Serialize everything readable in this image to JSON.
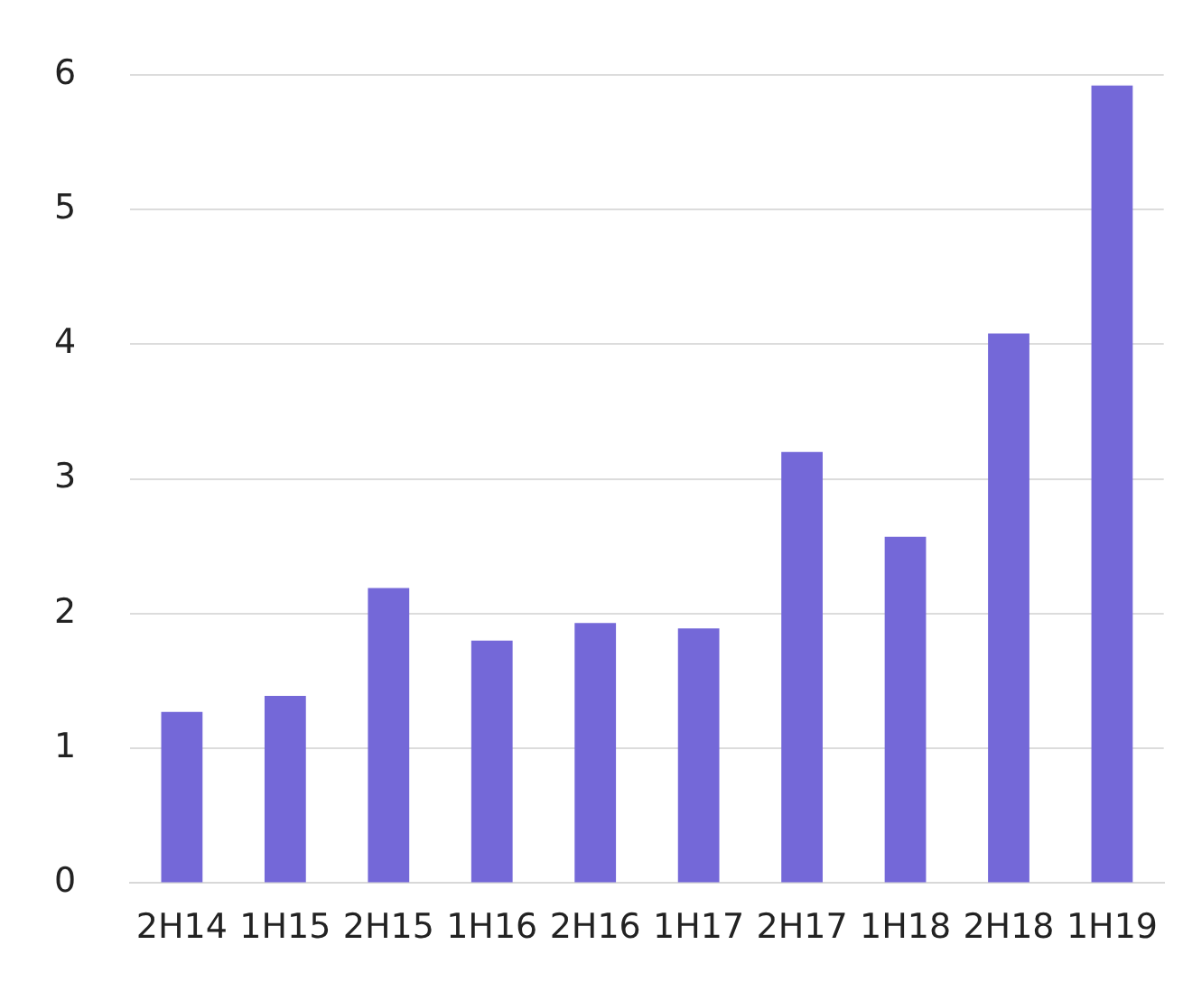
{
  "chart_data": {
    "type": "bar",
    "categories": [
      "2H14",
      "1H15",
      "2H15",
      "1H16",
      "2H16",
      "1H17",
      "2H17",
      "1H18",
      "2H18",
      "1H19"
    ],
    "values": [
      1.27,
      1.39,
      2.19,
      1.8,
      1.93,
      1.89,
      3.2,
      2.57,
      4.08,
      5.92
    ],
    "color": "#7468d8",
    "ylim": [
      0,
      6
    ],
    "yticks": [
      0,
      1,
      2,
      3,
      4,
      5,
      6
    ],
    "grid": "y"
  }
}
